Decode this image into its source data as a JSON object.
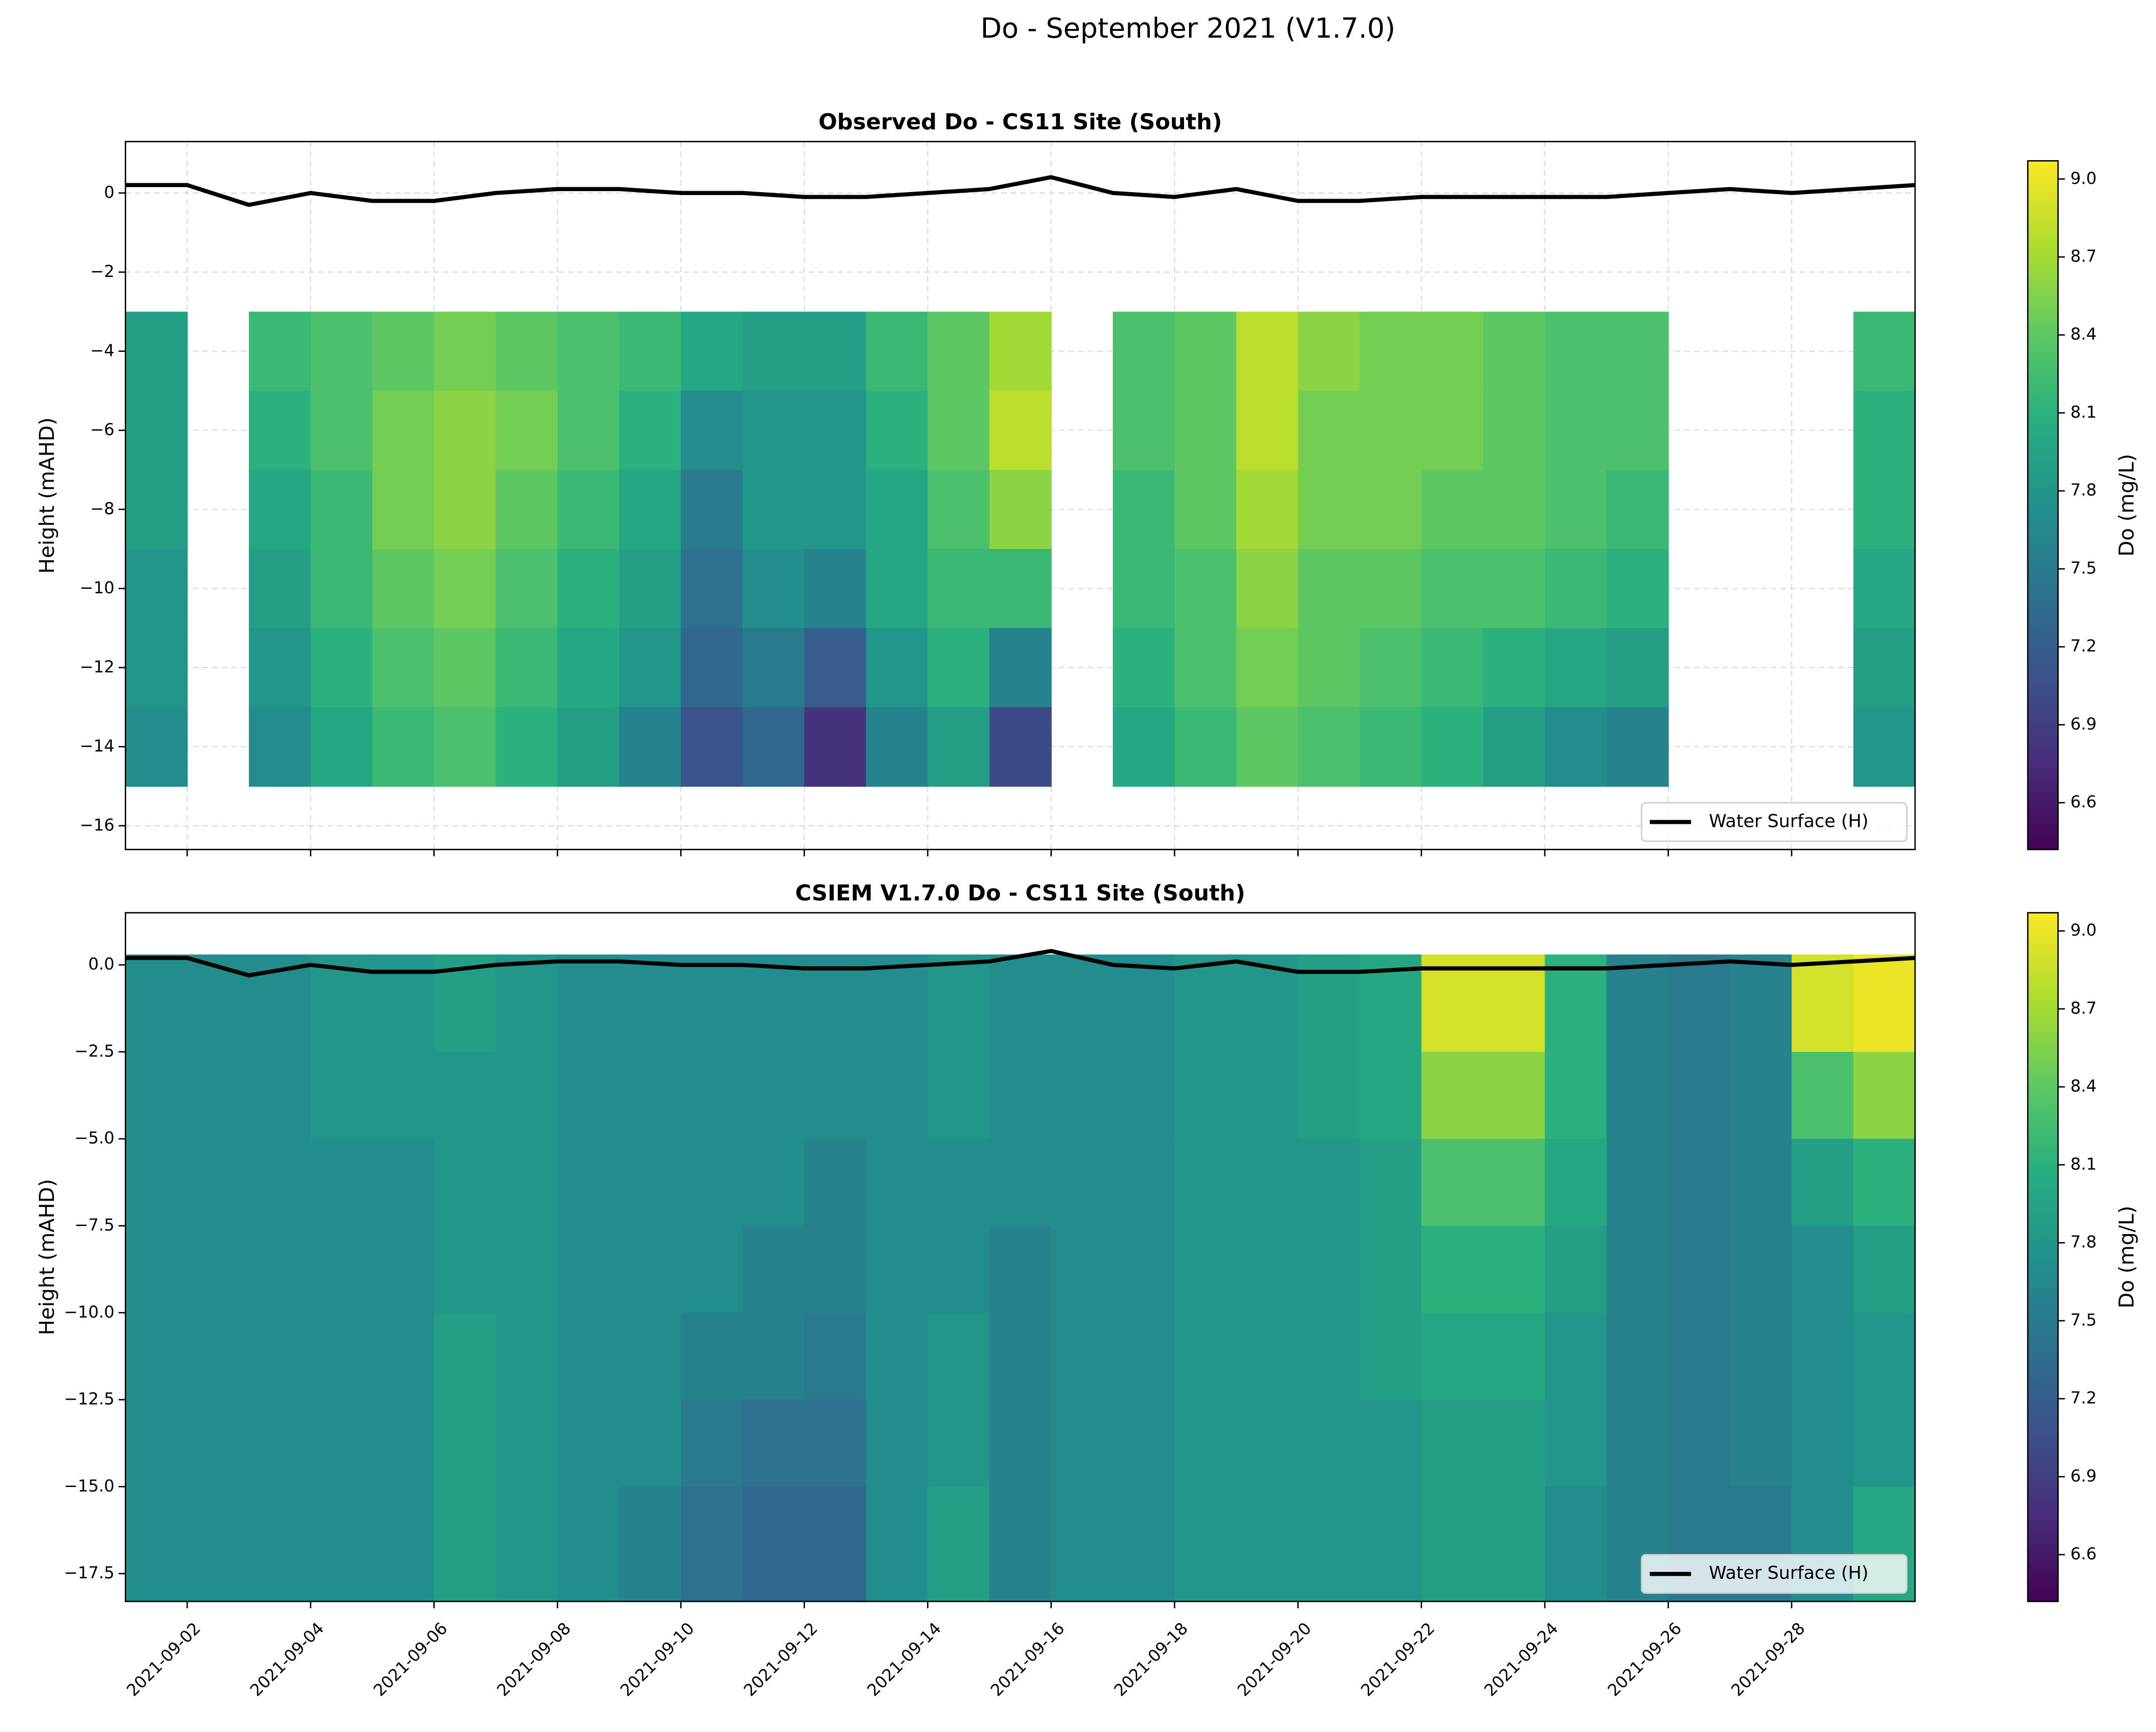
{
  "title": "Do - September 2021 (V1.7.0)",
  "chart_data": [
    {
      "type": "heatmap",
      "title": "Observed Do - CS11 Site (South)",
      "ylabel": "Height (mAHD)",
      "x": [
        "2021-09-01",
        "2021-09-02",
        "2021-09-03",
        "2021-09-04",
        "2021-09-05",
        "2021-09-06",
        "2021-09-07",
        "2021-09-08",
        "2021-09-09",
        "2021-09-10",
        "2021-09-11",
        "2021-09-12",
        "2021-09-13",
        "2021-09-14",
        "2021-09-15",
        "2021-09-16",
        "2021-09-17",
        "2021-09-18",
        "2021-09-19",
        "2021-09-20",
        "2021-09-21",
        "2021-09-22",
        "2021-09-23",
        "2021-09-24",
        "2021-09-25",
        "2021-09-26",
        "2021-09-27",
        "2021-09-28",
        "2021-09-29",
        "2021-09-30"
      ],
      "y": [
        -3,
        -5,
        -7,
        -9,
        -11,
        -13,
        -15
      ],
      "z": [
        [
          7.9,
          null,
          8.2,
          8.3,
          8.4,
          8.5,
          8.4,
          8.3,
          8.2,
          8.0,
          7.9,
          7.9,
          8.2,
          8.4,
          8.7,
          null,
          8.3,
          8.4,
          8.8,
          8.6,
          8.5,
          8.5,
          8.4,
          8.3,
          8.3,
          null,
          null,
          null,
          8.2
        ],
        [
          7.9,
          null,
          8.1,
          8.3,
          8.5,
          8.6,
          8.5,
          8.3,
          8.1,
          7.7,
          7.8,
          7.8,
          8.1,
          8.4,
          8.8,
          null,
          8.3,
          8.4,
          8.8,
          8.5,
          8.5,
          8.5,
          8.4,
          8.3,
          8.3,
          null,
          null,
          null,
          8.1
        ],
        [
          7.9,
          null,
          8.0,
          8.2,
          8.5,
          8.6,
          8.4,
          8.2,
          8.0,
          7.5,
          7.8,
          7.8,
          8.0,
          8.3,
          8.6,
          null,
          8.2,
          8.4,
          8.7,
          8.5,
          8.5,
          8.4,
          8.4,
          8.3,
          8.2,
          null,
          null,
          null,
          8.1
        ],
        [
          7.8,
          null,
          7.9,
          8.2,
          8.4,
          8.5,
          8.3,
          8.1,
          7.9,
          7.4,
          7.7,
          7.6,
          8.0,
          8.2,
          8.2,
          null,
          8.2,
          8.3,
          8.6,
          8.4,
          8.4,
          8.3,
          8.3,
          8.2,
          8.1,
          null,
          null,
          null,
          8.0
        ],
        [
          7.8,
          null,
          7.8,
          8.1,
          8.3,
          8.4,
          8.2,
          8.0,
          7.8,
          7.3,
          7.5,
          7.2,
          7.8,
          8.1,
          7.6,
          null,
          8.1,
          8.3,
          8.5,
          8.4,
          8.3,
          8.2,
          8.1,
          8.0,
          7.9,
          null,
          null,
          null,
          7.9
        ],
        [
          7.7,
          null,
          7.7,
          8.0,
          8.2,
          8.3,
          8.1,
          7.9,
          7.6,
          7.1,
          7.3,
          6.8,
          7.6,
          7.9,
          7.0,
          null,
          8.0,
          8.2,
          8.4,
          8.3,
          8.2,
          8.1,
          7.9,
          7.7,
          7.6,
          null,
          null,
          null,
          7.8
        ]
      ],
      "colormap": "viridis",
      "clim": [
        6.42,
        9.07
      ],
      "cbar_label": "Do (mg/L)",
      "cticks": [
        6.6,
        6.9,
        7.2,
        7.5,
        7.8,
        8.1,
        8.4,
        8.7,
        {
          "value": 9,
          "label": "9.0"
        }
      ],
      "xlim": [
        "2021-09-01",
        "2021-09-30"
      ],
      "xticks": [
        "2021-09-02",
        "2021-09-04",
        "2021-09-06",
        "2021-09-08",
        "2021-09-10",
        "2021-09-12",
        "2021-09-14",
        "2021-09-16",
        "2021-09-18",
        "2021-09-20",
        "2021-09-22",
        "2021-09-24",
        "2021-09-26",
        "2021-09-28"
      ],
      "show_xtick_labels": false,
      "ylim": [
        -16.6,
        1.3
      ],
      "yticks": [
        {
          "value": -16,
          "label": "−16"
        },
        {
          "value": -14,
          "label": "−14"
        },
        {
          "value": -12,
          "label": "−12"
        },
        {
          "value": -10,
          "label": "−10"
        },
        {
          "value": -8,
          "label": "−8"
        },
        {
          "value": -6,
          "label": "−6"
        },
        {
          "value": -4,
          "label": "−4"
        },
        {
          "value": -2,
          "label": "−2"
        },
        0
      ],
      "grid": true,
      "legend": "lower right",
      "series": [
        {
          "name": "Water Surface (H)",
          "color": "#000000",
          "x": [
            "2021-09-01",
            "2021-09-02",
            "2021-09-03",
            "2021-09-04",
            "2021-09-05",
            "2021-09-06",
            "2021-09-07",
            "2021-09-08",
            "2021-09-09",
            "2021-09-10",
            "2021-09-11",
            "2021-09-12",
            "2021-09-13",
            "2021-09-14",
            "2021-09-15",
            "2021-09-16",
            "2021-09-17",
            "2021-09-18",
            "2021-09-19",
            "2021-09-20",
            "2021-09-21",
            "2021-09-22",
            "2021-09-23",
            "2021-09-24",
            "2021-09-25",
            "2021-09-26",
            "2021-09-27",
            "2021-09-28",
            "2021-09-29",
            "2021-09-30"
          ],
          "values": [
            0.2,
            0.2,
            -0.3,
            0.0,
            -0.2,
            -0.2,
            0.0,
            0.1,
            0.1,
            0.0,
            0.0,
            -0.1,
            -0.1,
            0.0,
            0.1,
            0.4,
            0.0,
            -0.1,
            0.1,
            -0.2,
            -0.2,
            -0.1,
            -0.1,
            -0.1,
            -0.1,
            0.0,
            0.1,
            0.0,
            0.1,
            0.2
          ]
        }
      ]
    },
    {
      "type": "heatmap",
      "title": "CSIEM V1.7.0 Do - CS11 Site (South)",
      "ylabel": "Height (mAHD)",
      "x": [
        "2021-09-01",
        "2021-09-02",
        "2021-09-03",
        "2021-09-04",
        "2021-09-05",
        "2021-09-06",
        "2021-09-07",
        "2021-09-08",
        "2021-09-09",
        "2021-09-10",
        "2021-09-11",
        "2021-09-12",
        "2021-09-13",
        "2021-09-14",
        "2021-09-15",
        "2021-09-16",
        "2021-09-17",
        "2021-09-18",
        "2021-09-19",
        "2021-09-20",
        "2021-09-21",
        "2021-09-22",
        "2021-09-23",
        "2021-09-24",
        "2021-09-25",
        "2021-09-26",
        "2021-09-27",
        "2021-09-28",
        "2021-09-29",
        "2021-09-30"
      ],
      "y": [
        0.3,
        -2.5,
        -5,
        -7.5,
        -10,
        -12.5,
        -15,
        -18.3
      ],
      "z": [
        [
          7.7,
          7.7,
          7.7,
          7.8,
          7.8,
          7.9,
          7.8,
          7.7,
          7.7,
          7.7,
          7.7,
          7.7,
          7.7,
          7.8,
          7.7,
          7.7,
          7.7,
          7.8,
          7.8,
          7.9,
          8.0,
          8.9,
          8.9,
          8.1,
          7.6,
          7.5,
          7.6,
          8.9,
          9.0
        ],
        [
          7.7,
          7.7,
          7.7,
          7.8,
          7.8,
          7.8,
          7.8,
          7.7,
          7.7,
          7.7,
          7.7,
          7.7,
          7.7,
          7.8,
          7.7,
          7.7,
          7.7,
          7.8,
          7.8,
          7.9,
          8.0,
          8.6,
          8.6,
          8.1,
          7.6,
          7.5,
          7.6,
          8.3,
          8.6
        ],
        [
          7.7,
          7.7,
          7.7,
          7.7,
          7.7,
          7.8,
          7.8,
          7.7,
          7.7,
          7.7,
          7.7,
          7.6,
          7.7,
          7.7,
          7.7,
          7.7,
          7.7,
          7.8,
          7.8,
          7.8,
          7.9,
          8.3,
          8.3,
          8.0,
          7.6,
          7.5,
          7.6,
          7.9,
          8.1
        ],
        [
          7.7,
          7.7,
          7.7,
          7.7,
          7.7,
          7.8,
          7.8,
          7.7,
          7.7,
          7.7,
          7.6,
          7.6,
          7.7,
          7.7,
          7.6,
          7.7,
          7.7,
          7.8,
          7.8,
          7.8,
          7.9,
          8.1,
          8.1,
          7.9,
          7.6,
          7.5,
          7.6,
          7.7,
          7.9
        ],
        [
          7.7,
          7.7,
          7.7,
          7.7,
          7.7,
          7.9,
          7.8,
          7.7,
          7.7,
          7.6,
          7.6,
          7.5,
          7.7,
          7.8,
          7.6,
          7.7,
          7.7,
          7.8,
          7.8,
          7.8,
          7.9,
          8.0,
          8.0,
          7.8,
          7.6,
          7.5,
          7.6,
          7.7,
          7.8
        ],
        [
          7.7,
          7.7,
          7.7,
          7.7,
          7.7,
          7.9,
          7.8,
          7.7,
          7.7,
          7.5,
          7.4,
          7.4,
          7.7,
          7.8,
          7.6,
          7.7,
          7.7,
          7.8,
          7.8,
          7.8,
          7.8,
          7.9,
          7.9,
          7.8,
          7.6,
          7.5,
          7.6,
          7.7,
          7.8
        ],
        [
          7.7,
          7.7,
          7.7,
          7.7,
          7.7,
          7.9,
          7.8,
          7.7,
          7.6,
          7.4,
          7.3,
          7.3,
          7.7,
          7.9,
          7.6,
          7.7,
          7.7,
          7.8,
          7.8,
          7.8,
          7.8,
          7.9,
          7.9,
          7.7,
          7.6,
          7.5,
          7.5,
          7.7,
          8.0
        ]
      ],
      "colormap": "viridis",
      "clim": [
        6.42,
        9.07
      ],
      "cbar_label": "Do (mg/L)",
      "cticks": [
        6.6,
        6.9,
        7.2,
        7.5,
        7.8,
        8.1,
        8.4,
        8.7,
        {
          "value": 9,
          "label": "9.0"
        }
      ],
      "xlim": [
        "2021-09-01",
        "2021-09-30"
      ],
      "xticks": [
        "2021-09-02",
        "2021-09-04",
        "2021-09-06",
        "2021-09-08",
        "2021-09-10",
        "2021-09-12",
        "2021-09-14",
        "2021-09-16",
        "2021-09-18",
        "2021-09-20",
        "2021-09-22",
        "2021-09-24",
        "2021-09-26",
        "2021-09-28"
      ],
      "show_xtick_labels": true,
      "ylim": [
        -18.3,
        1.5
      ],
      "yticks": [
        {
          "value": -17.5,
          "label": "−17.5"
        },
        {
          "value": -15,
          "label": "−15.0"
        },
        {
          "value": -12.5,
          "label": "−12.5"
        },
        {
          "value": -10,
          "label": "−10.0"
        },
        {
          "value": -7.5,
          "label": "−7.5"
        },
        {
          "value": -5,
          "label": "−5.0"
        },
        {
          "value": -2.5,
          "label": "−2.5"
        },
        {
          "value": 0,
          "label": "0.0"
        }
      ],
      "grid": false,
      "legend": "lower right",
      "series": [
        {
          "name": "Water Surface (H)",
          "color": "#000000",
          "x": [
            "2021-09-01",
            "2021-09-02",
            "2021-09-03",
            "2021-09-04",
            "2021-09-05",
            "2021-09-06",
            "2021-09-07",
            "2021-09-08",
            "2021-09-09",
            "2021-09-10",
            "2021-09-11",
            "2021-09-12",
            "2021-09-13",
            "2021-09-14",
            "2021-09-15",
            "2021-09-16",
            "2021-09-17",
            "2021-09-18",
            "2021-09-19",
            "2021-09-20",
            "2021-09-21",
            "2021-09-22",
            "2021-09-23",
            "2021-09-24",
            "2021-09-25",
            "2021-09-26",
            "2021-09-27",
            "2021-09-28",
            "2021-09-29",
            "2021-09-30"
          ],
          "values": [
            0.2,
            0.2,
            -0.3,
            0.0,
            -0.2,
            -0.2,
            0.0,
            0.1,
            0.1,
            0.0,
            0.0,
            -0.1,
            -0.1,
            0.0,
            0.1,
            0.4,
            0.0,
            -0.1,
            0.1,
            -0.2,
            -0.2,
            -0.1,
            -0.1,
            -0.1,
            -0.1,
            0.0,
            0.1,
            0.0,
            0.1,
            0.2
          ]
        }
      ]
    }
  ]
}
